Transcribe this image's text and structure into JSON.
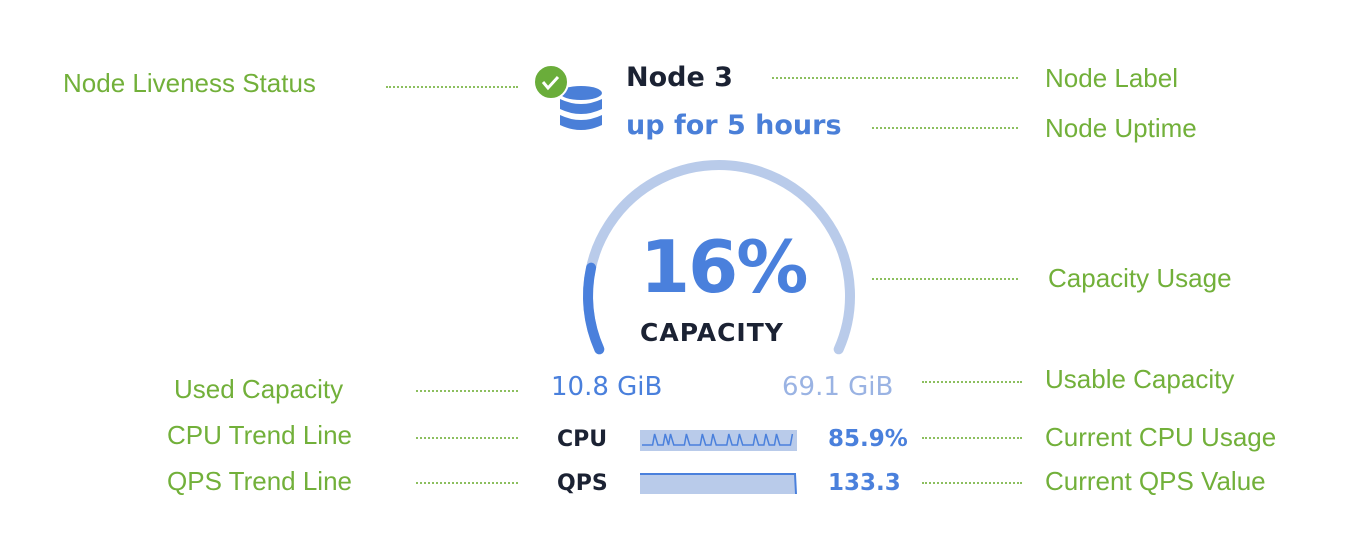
{
  "node": {
    "label": "Node 3",
    "uptime": "up for 5 hours",
    "liveness_icon": "check-circle-icon",
    "node_icon": "database-icon",
    "status_color": "#6aad3a"
  },
  "capacity": {
    "percent_label": "16%",
    "percent_value": 16,
    "caption": "CAPACITY",
    "used": "10.8 GiB",
    "usable": "69.1 GiB",
    "fill_color": "#4a80dc",
    "track_color": "#b9cbea"
  },
  "metrics": [
    {
      "label": "CPU",
      "value": "85.9%"
    },
    {
      "label": "QPS",
      "value": "133.3"
    }
  ],
  "annotations": {
    "liveness": "Node Liveness Status",
    "label": "Node Label",
    "uptime": "Node Uptime",
    "capacity_usage": "Capacity Usage",
    "used_capacity": "Used Capacity",
    "usable_capacity": "Usable Capacity",
    "cpu_trend": "CPU Trend Line",
    "current_cpu": "Current CPU Usage",
    "qps_trend": "QPS Trend Line",
    "current_qps": "Current QPS Value"
  }
}
